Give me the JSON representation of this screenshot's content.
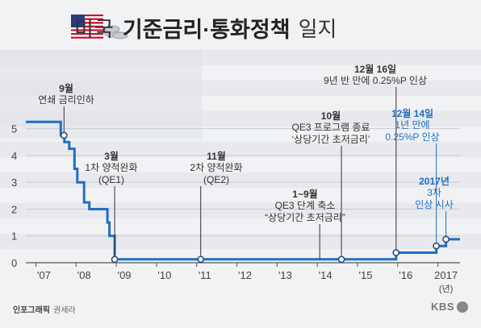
{
  "title": {
    "part1": "미국",
    "part2": "기준금리·통화정책",
    "part3": "일지"
  },
  "credit": {
    "label": "인포그래픽",
    "author": "권세라"
  },
  "logo": "KBS",
  "colors": {
    "line": "#1f6fc1",
    "highlight": "#1f6fc1",
    "text": "#333333",
    "marker": "#2d4f78"
  },
  "chart_data": {
    "type": "line",
    "title": "미국 기준금리·통화정책 일지",
    "xlabel": "(년)",
    "ylabel": "",
    "x_tick_labels": [
      "'07",
      "'08",
      "'09",
      "'10",
      "'11",
      "'12",
      "'13",
      "'14",
      "'15",
      "'16",
      "2017"
    ],
    "y_ticks": [
      0,
      1,
      2,
      3,
      4,
      5
    ],
    "ylim": [
      0,
      5.5
    ],
    "xlim": [
      2006.75,
      2017.55
    ],
    "grid": "horizontal",
    "series": [
      {
        "name": "",
        "step": true,
        "points": [
          [
            2006.75,
            5.25
          ],
          [
            2007.62,
            5.25
          ],
          [
            2007.62,
            4.75
          ],
          [
            2007.71,
            4.75
          ],
          [
            2007.71,
            4.5
          ],
          [
            2007.83,
            4.5
          ],
          [
            2007.83,
            4.25
          ],
          [
            2007.96,
            4.25
          ],
          [
            2007.96,
            3.5
          ],
          [
            2008.03,
            3.5
          ],
          [
            2008.03,
            3.0
          ],
          [
            2008.2,
            3.0
          ],
          [
            2008.2,
            2.25
          ],
          [
            2008.33,
            2.25
          ],
          [
            2008.33,
            2.0
          ],
          [
            2008.78,
            2.0
          ],
          [
            2008.78,
            1.5
          ],
          [
            2008.83,
            1.5
          ],
          [
            2008.83,
            1.0
          ],
          [
            2008.96,
            1.0
          ],
          [
            2008.96,
            0.125
          ],
          [
            2015.96,
            0.125
          ],
          [
            2015.96,
            0.375
          ],
          [
            2016.96,
            0.375
          ],
          [
            2016.96,
            0.625
          ],
          [
            2017.2,
            0.625
          ],
          [
            2017.2,
            0.875
          ],
          [
            2017.55,
            0.875
          ]
        ]
      }
    ],
    "annotations": [
      {
        "x": 2007.7,
        "y": 4.75,
        "date": "9월",
        "lines": [
          "연쇄 금리인하"
        ],
        "highlight": false
      },
      {
        "x": 2008.96,
        "y": 0.125,
        "date": "3월",
        "lines": [
          "1차 양적완화",
          "(QE1)"
        ],
        "highlight": false
      },
      {
        "x": 2011.1,
        "y": 0.125,
        "date": "11월",
        "lines": [
          "2차 양적완화",
          "(QE2)"
        ],
        "highlight": false
      },
      {
        "x": 2014.06,
        "y": 0.125,
        "date": "1~9월",
        "lines": [
          "QE3 단계 축소",
          "“상당기간 초저금리”"
        ],
        "highlight": false,
        "marker": false
      },
      {
        "x": 2014.6,
        "y": 0.125,
        "date": "10월",
        "lines": [
          "QE3 프로그램 종료",
          "‘상당기간 초저금리’"
        ],
        "highlight": false
      },
      {
        "x": 2015.96,
        "y": 0.375,
        "date": "12월 16일",
        "lines": [
          "9년 반 만에 0.25%P 인상"
        ],
        "highlight": false
      },
      {
        "x": 2016.96,
        "y": 0.625,
        "date": "12월 14일",
        "lines": [
          "1년 만에",
          "0.25%P 인상"
        ],
        "highlight": true
      },
      {
        "x": 2017.2,
        "y": 0.875,
        "date": "2017년",
        "lines": [
          "3차",
          "인상 시사"
        ],
        "highlight": true
      }
    ]
  }
}
